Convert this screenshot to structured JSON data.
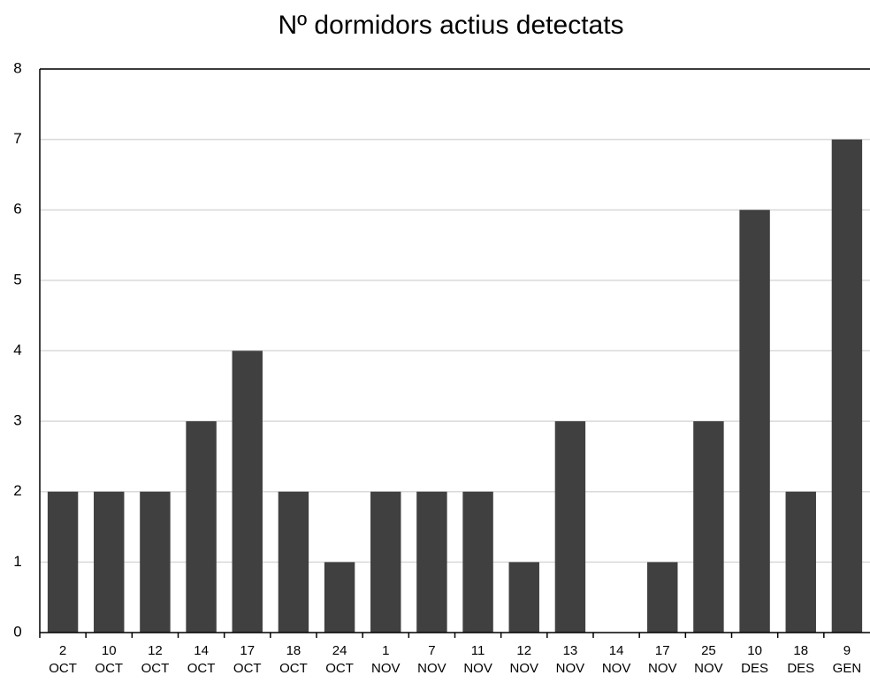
{
  "chart_data": {
    "type": "bar",
    "title": "Nº dormidors actius detectats",
    "categories": [
      "2 OCT",
      "10 OCT",
      "12 OCT",
      "14 OCT",
      "17 OCT",
      "18 OCT",
      "24 OCT",
      "1 NOV",
      "7 NOV",
      "11 NOV",
      "12 NOV",
      "13 NOV",
      "14 NOV",
      "17 NOV",
      "25 NOV",
      "10 DES",
      "18 DES",
      "9 GEN"
    ],
    "values": [
      2,
      2,
      2,
      3,
      4,
      2,
      1,
      2,
      2,
      2,
      1,
      3,
      0,
      1,
      3,
      6,
      2,
      7
    ],
    "color": "#404040",
    "ylim": [
      0,
      8
    ],
    "yticks": [
      0,
      1,
      2,
      3,
      4,
      5,
      6,
      7,
      8
    ],
    "grid": true
  }
}
